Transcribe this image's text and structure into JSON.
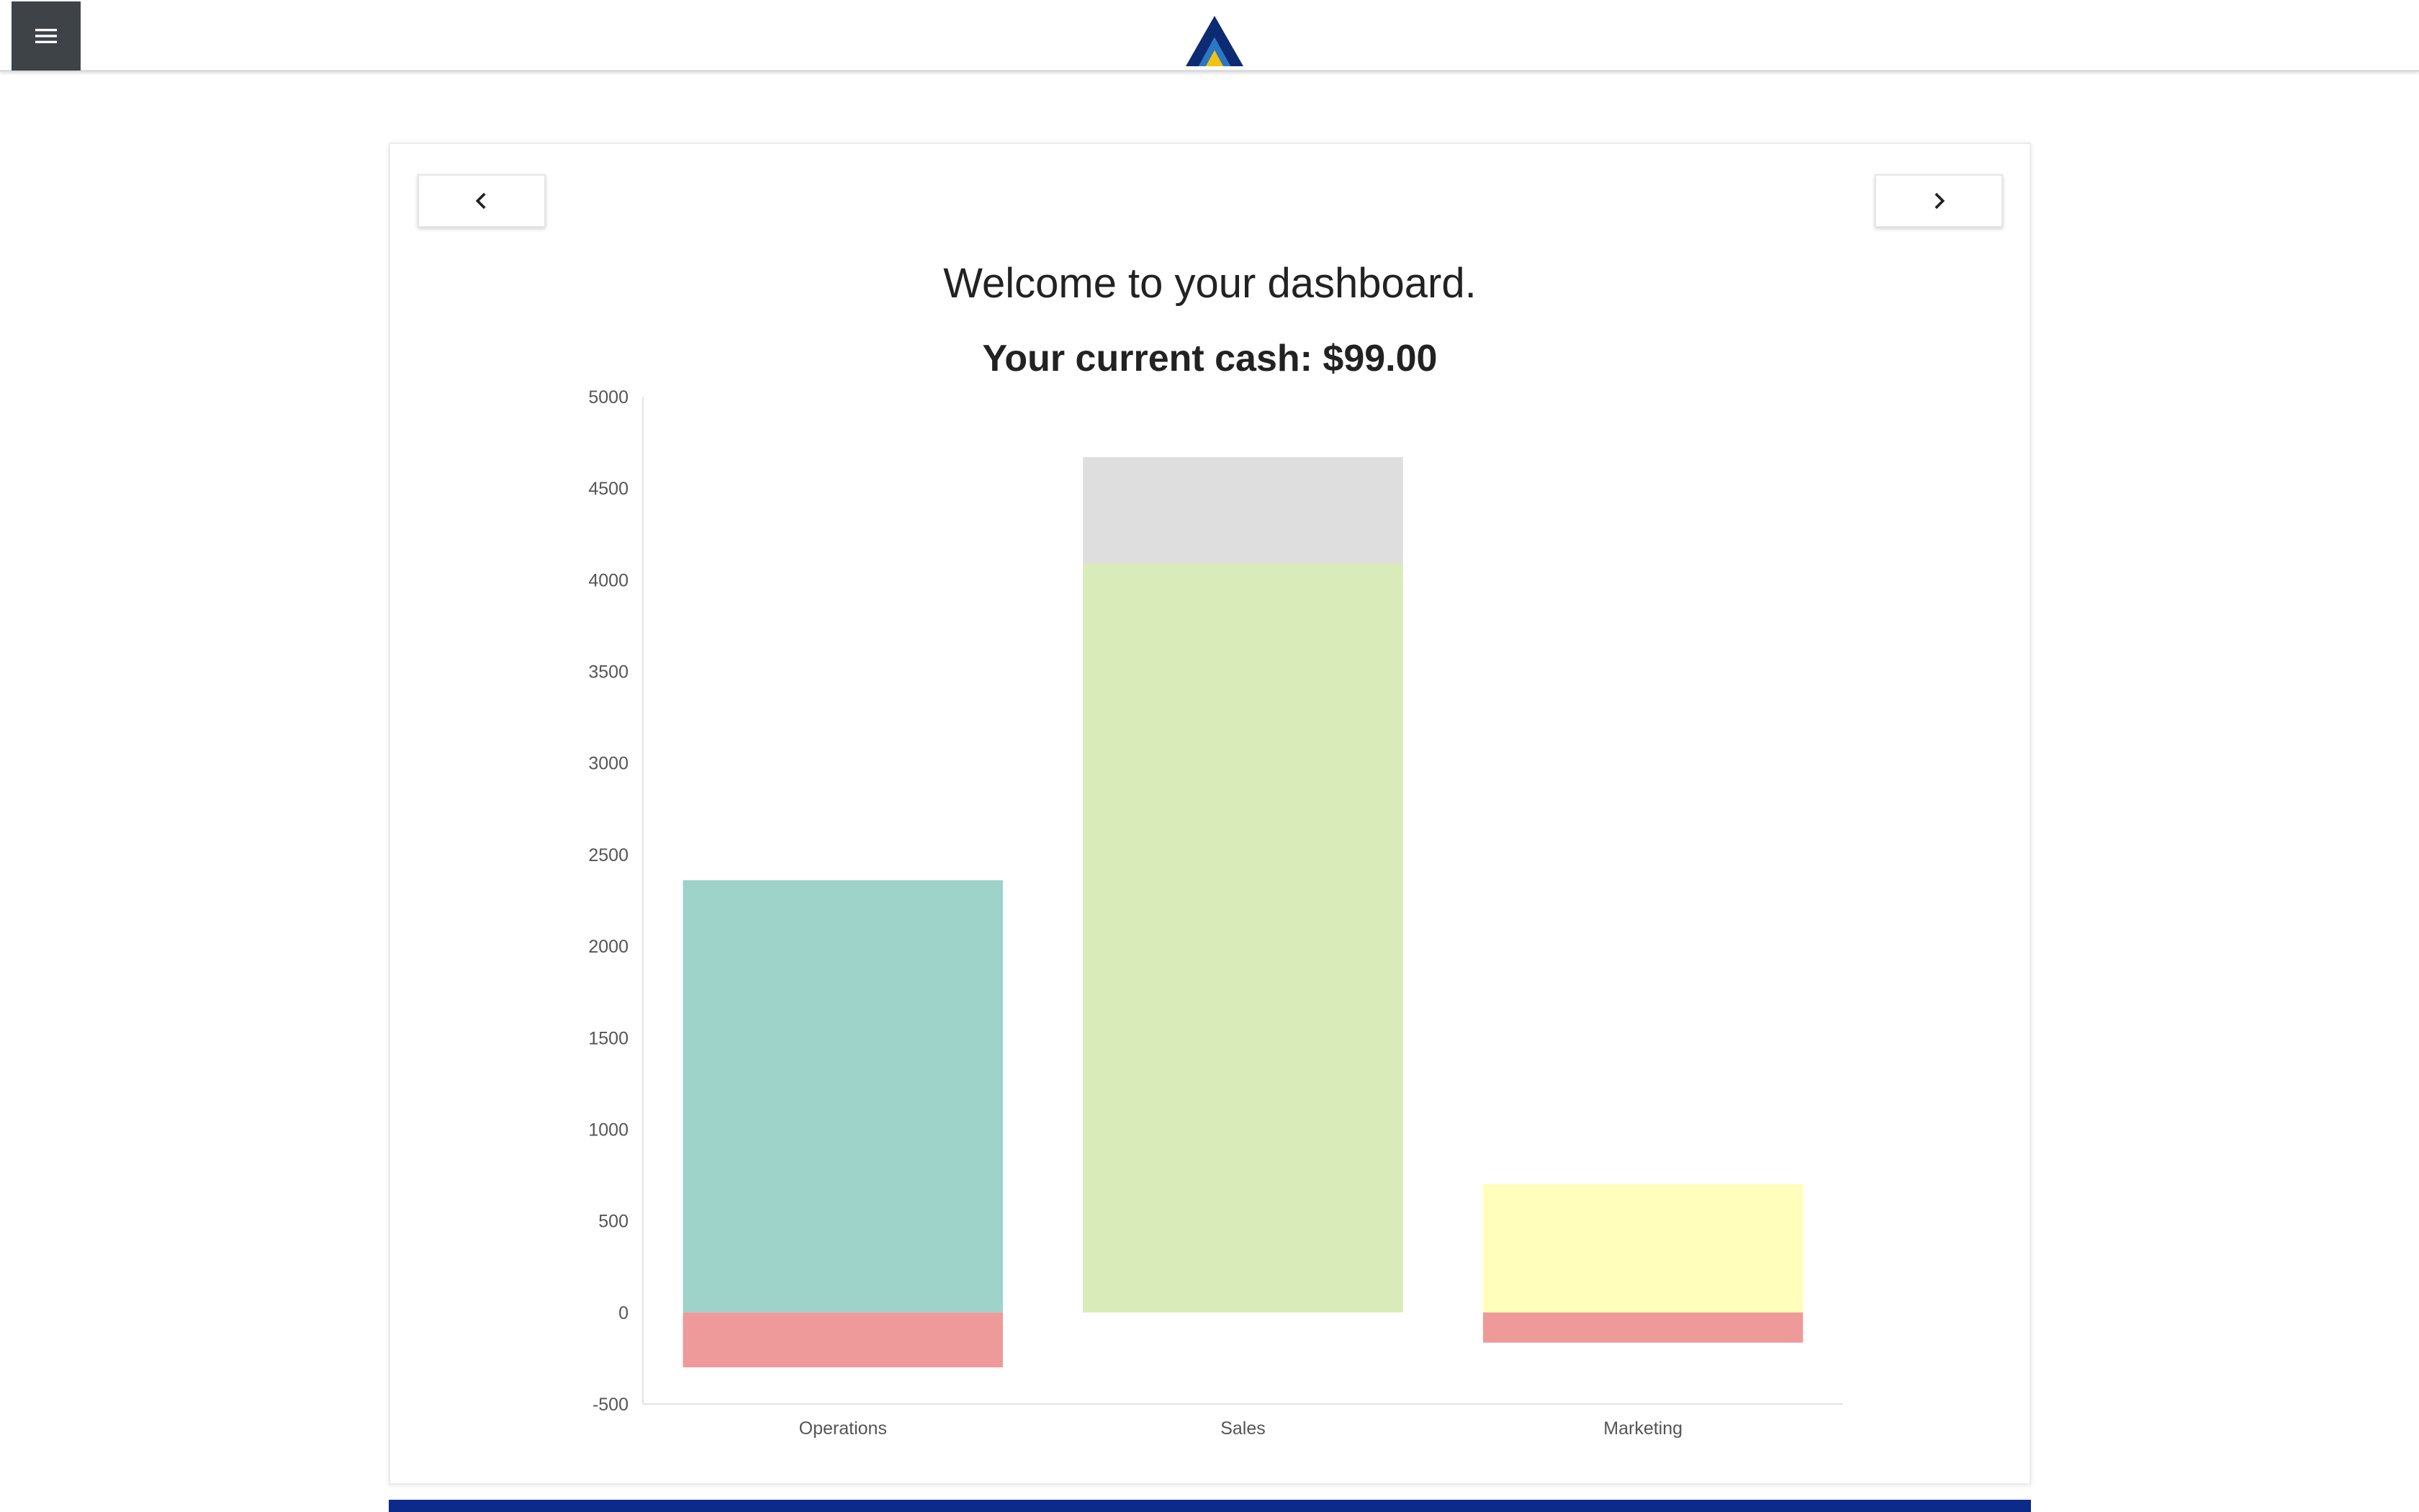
{
  "header": {
    "menu_icon": "hamburger-menu-icon",
    "logo_icon": "triangle-logo-icon",
    "logo_colors": {
      "outer": "#0d2b72",
      "inner": "#2a78c4",
      "accent": "#f2c20f"
    }
  },
  "card": {
    "prev_icon": "chevron-left-icon",
    "next_icon": "chevron-right-icon",
    "welcome_text": "Welcome to your dashboard.",
    "cash_text": "Your current cash: $99.00"
  },
  "chart_data": {
    "type": "bar",
    "stacked": true,
    "categories": [
      "Operations",
      "Sales",
      "Marketing"
    ],
    "ylim": [
      -500,
      5000
    ],
    "yticks": [
      5000,
      4500,
      4000,
      3500,
      3000,
      2500,
      2000,
      1500,
      1000,
      500,
      0,
      -500
    ],
    "grid": false,
    "legend": "none",
    "bars": [
      {
        "category": "Operations",
        "segments": [
          {
            "from": 0,
            "to": 2360,
            "color": "#9dd3c9"
          },
          {
            "from": -300,
            "to": 0,
            "color": "#ef9a9a"
          }
        ]
      },
      {
        "category": "Sales",
        "segments": [
          {
            "from": 0,
            "to": 4090,
            "color": "#d8ebb9"
          },
          {
            "from": 4090,
            "to": 4670,
            "color": "#dedede"
          }
        ]
      },
      {
        "category": "Marketing",
        "segments": [
          {
            "from": 0,
            "to": 700,
            "color": "#ffffbb"
          },
          {
            "from": -165,
            "to": 0,
            "color": "#ef9a9a"
          }
        ]
      }
    ]
  },
  "colors": {
    "footer_strip": "#0b2a8a",
    "menu_button": "#3d4347"
  }
}
